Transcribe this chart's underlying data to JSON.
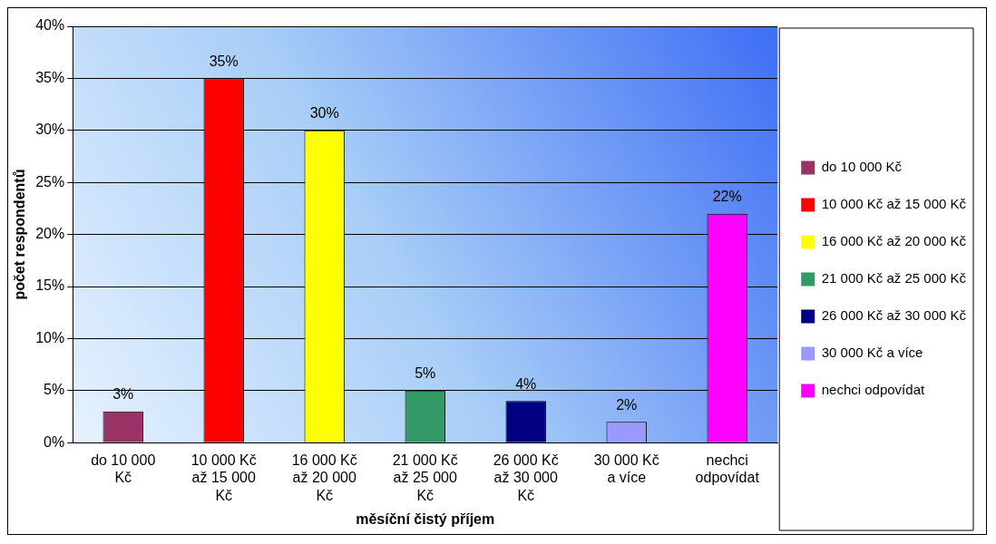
{
  "chart_data": {
    "type": "bar",
    "xlabel": "měsíční čistý příjem",
    "ylabel": "počet respondentů",
    "categories": [
      "do 10 000 Kč",
      "10 000 Kč až 15 000 Kč",
      "16 000 Kč až 20 000 Kč",
      "21 000 Kč až 25 000 Kč",
      "26 000 Kč až 30 000 Kč",
      "30 000 Kč a více",
      "nechci odpovídat"
    ],
    "series": [
      {
        "name": "do 10 000 Kč",
        "color": "#993366",
        "values": [
          3,
          null,
          null,
          null,
          null,
          null,
          null
        ],
        "value_labels": [
          "3%",
          null,
          null,
          null,
          null,
          null,
          null
        ]
      },
      {
        "name": "10 000 Kč až 15 000 Kč",
        "color": "#ff0000",
        "values": [
          null,
          35,
          null,
          null,
          null,
          null,
          null
        ],
        "value_labels": [
          null,
          "35%",
          null,
          null,
          null,
          null,
          null
        ]
      },
      {
        "name": "16 000 Kč až 20 000 Kč",
        "color": "#ffff00",
        "values": [
          null,
          null,
          30,
          null,
          null,
          null,
          null
        ],
        "value_labels": [
          null,
          null,
          "30%",
          null,
          null,
          null,
          null
        ]
      },
      {
        "name": "21 000 Kč až 25 000 Kč",
        "color": "#339966",
        "values": [
          null,
          null,
          null,
          5,
          null,
          null,
          null
        ],
        "value_labels": [
          null,
          null,
          null,
          "5%",
          null,
          null,
          null
        ]
      },
      {
        "name": "26 000 Kč až 30 000 Kč",
        "color": "#000080",
        "values": [
          null,
          null,
          null,
          null,
          4,
          null,
          null
        ],
        "value_labels": [
          null,
          null,
          null,
          null,
          "4%",
          null,
          null
        ]
      },
      {
        "name": "30 000 Kč a více",
        "color": "#9999ff",
        "values": [
          null,
          null,
          null,
          null,
          null,
          2,
          null
        ],
        "value_labels": [
          null,
          null,
          null,
          null,
          null,
          "2%",
          null
        ]
      },
      {
        "name": "nechci odpovídat",
        "color": "#ff00ff",
        "values": [
          null,
          null,
          null,
          null,
          null,
          null,
          22
        ],
        "value_labels": [
          null,
          null,
          null,
          null,
          null,
          null,
          "22%"
        ]
      }
    ],
    "ylim": [
      0,
      40
    ],
    "yticks": [
      {
        "value": 0,
        "label": "0%"
      },
      {
        "value": 5,
        "label": "5%"
      },
      {
        "value": 10,
        "label": "10%"
      },
      {
        "value": 15,
        "label": "15%"
      },
      {
        "value": 20,
        "label": "20%"
      },
      {
        "value": 25,
        "label": "25%"
      },
      {
        "value": 30,
        "label": "30%"
      },
      {
        "value": 35,
        "label": "35%"
      },
      {
        "value": 40,
        "label": "40%"
      }
    ],
    "grid": "y",
    "legend": "right"
  }
}
